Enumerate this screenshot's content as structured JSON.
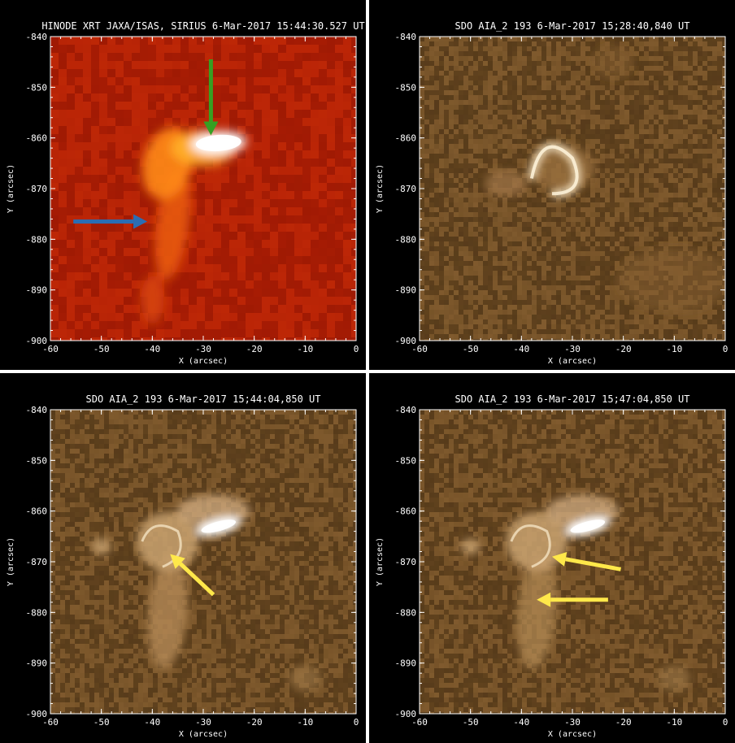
{
  "panels": [
    {
      "title": "HINODE XRT JAXA/ISAS, SIRIUS   6-Mar-2017 15:44:30.527 UT",
      "kind": "xrt",
      "arrows": [
        {
          "color": "#2a6db3",
          "direction": "east",
          "label": "blue"
        },
        {
          "color": "#36a022",
          "direction": "south",
          "label": "green"
        }
      ]
    },
    {
      "title": "SDO AIA_2 193   6-Mar-2017 15;28:40,840 UT",
      "kind": "aia1",
      "arrows": []
    },
    {
      "title": "SDO AIA_2 193   6-Mar-2017 15;44:04,850 UT",
      "kind": "aia2",
      "arrows": [
        {
          "color": "#ffe84a",
          "direction": "northwest",
          "label": "yellow"
        }
      ]
    },
    {
      "title": "SDO AIA_2 193   6-Mar-2017 15;47:04,850 UT",
      "kind": "aia3",
      "arrows": [
        {
          "color": "#ffe84a",
          "direction": "west",
          "label": "yellow-upper"
        },
        {
          "color": "#ffe84a",
          "direction": "west",
          "label": "yellow-lower"
        }
      ]
    }
  ],
  "axes": {
    "xlabel": "X (arcsec)",
    "ylabel": "Y (arcsec)",
    "xticks": [
      "-60",
      "-50",
      "-40",
      "-30",
      "-20",
      "-10",
      "0"
    ],
    "yticks": [
      "-840",
      "-850",
      "-860",
      "-870",
      "-880",
      "-890",
      "-900"
    ],
    "xrange": [
      -60,
      0
    ],
    "yrange": [
      -900,
      -840
    ]
  },
  "colors": {
    "xrt_bg": "#b01f05",
    "xrt_bright": "#ffffff",
    "aia_bg": "#6b4a22",
    "aia_bright": "#fff4dc"
  }
}
